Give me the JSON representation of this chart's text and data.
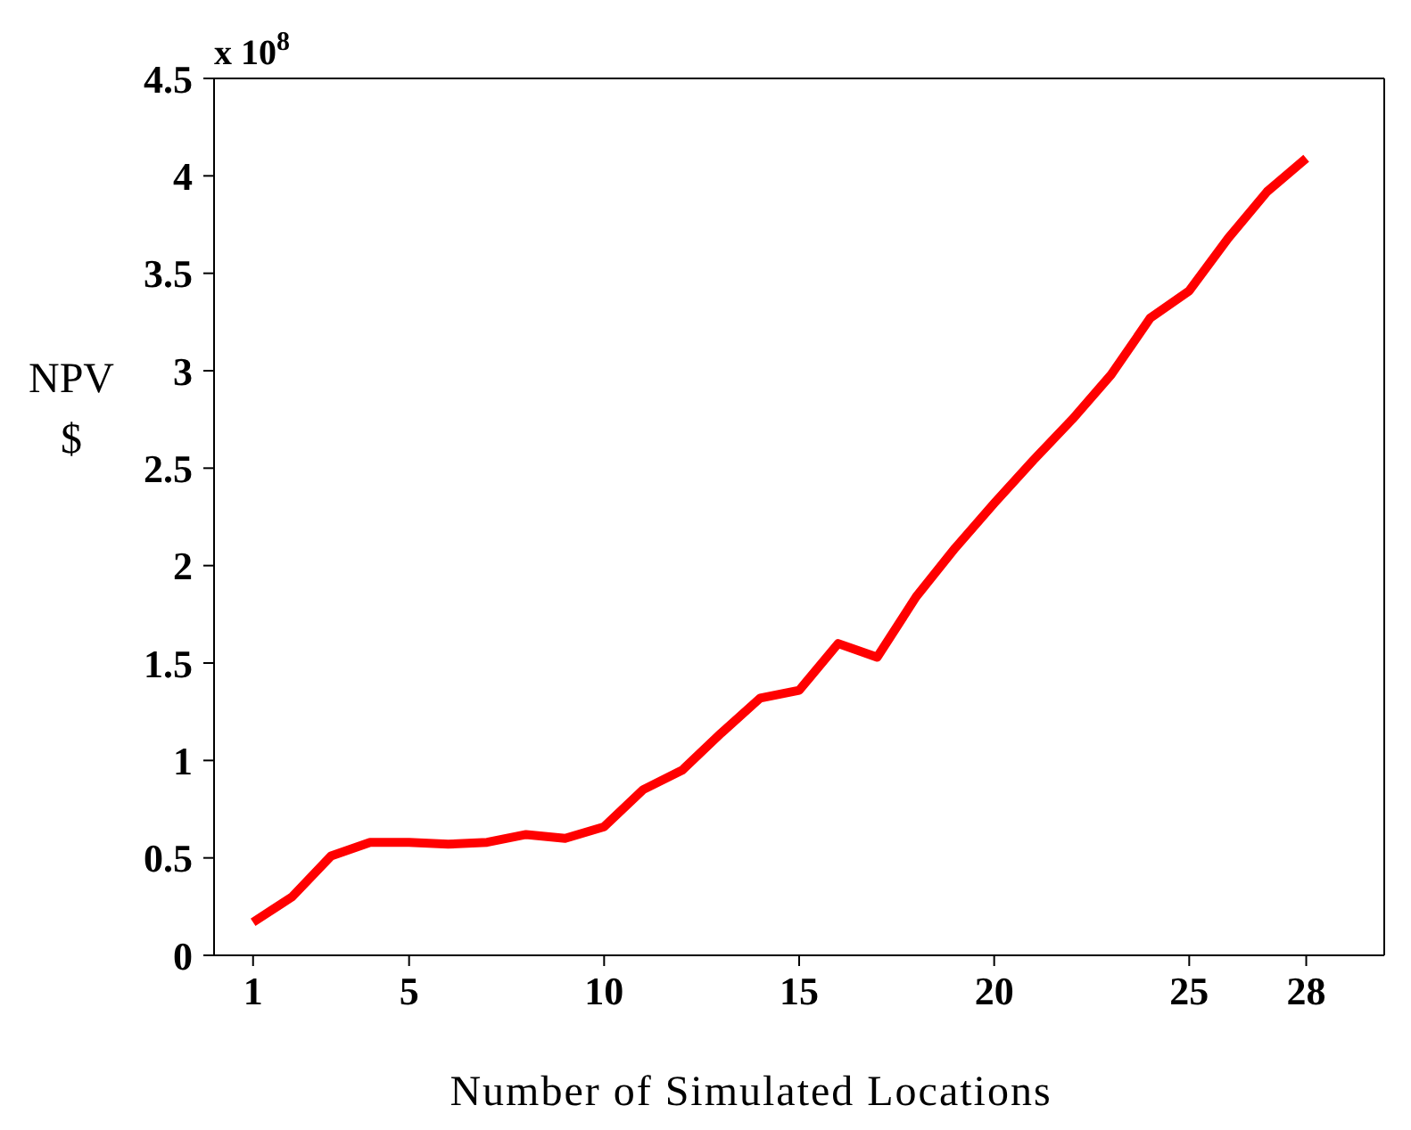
{
  "chart_data": {
    "type": "line",
    "xlabel": "Number of Simulated  Locations",
    "ylabel": "NPV\n$",
    "annotations": [
      "x 10$^{8}$"
    ],
    "x": [
      1,
      2,
      3,
      4,
      5,
      6,
      7,
      8,
      9,
      10,
      11,
      12,
      13,
      14,
      15,
      16,
      17,
      18,
      19,
      20,
      21,
      22,
      23,
      24,
      25,
      26,
      27,
      28
    ],
    "series": [
      {
        "color": "#ff0000",
        "values": [
          0.17,
          0.3,
          0.51,
          0.58,
          0.58,
          0.57,
          0.58,
          0.62,
          0.6,
          0.66,
          0.85,
          0.95,
          1.14,
          1.32,
          1.36,
          1.6,
          1.53,
          1.84,
          2.09,
          2.32,
          2.54,
          2.75,
          2.98,
          3.27,
          3.41,
          3.68,
          3.92,
          4.09
        ]
      }
    ],
    "xlim": [
      0,
      30
    ],
    "xticks": [
      1,
      5,
      10,
      15,
      20,
      25,
      28
    ],
    "ylim": [
      0,
      4.5
    ],
    "yticks": [
      0,
      0.5,
      1,
      1.5,
      2,
      2.5,
      3,
      3.5,
      4,
      4.5
    ],
    "grid": false,
    "legend": false,
    "marker": "none",
    "line_style": "solid"
  }
}
